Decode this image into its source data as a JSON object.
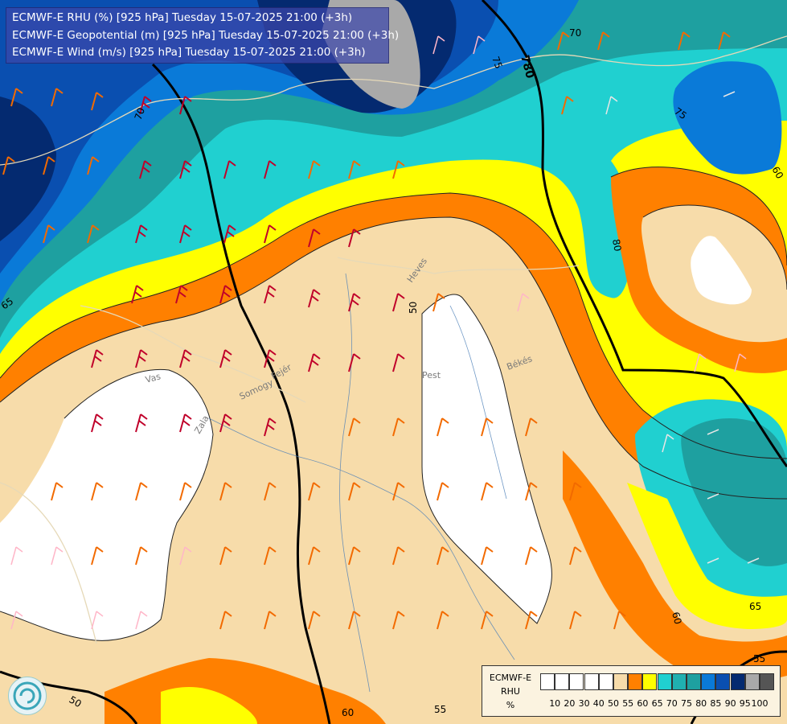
{
  "titles": [
    "ECMWF-E RHU (%) [925 hPa] Tuesday 15-07-2025 21:00 (+3h)",
    "ECMWF-E Geopotential (m) [925 hPa] Tuesday 15-07-2025 21:00 (+3h)",
    "ECMWF-E Wind (m/s) [925 hPa] Tuesday 15-07-2025 21:00 (+3h)"
  ],
  "legend": {
    "model": "ECMWF-E",
    "variable": "RHU",
    "unit": "%",
    "ticks": [
      "10",
      "20",
      "30",
      "40",
      "50",
      "55",
      "60",
      "65",
      "70",
      "75",
      "80",
      "85",
      "90",
      "95",
      "100"
    ],
    "colors": [
      "#ffffff",
      "#ffffff",
      "#ffffff",
      "#ffffff",
      "#ffffff",
      "#f7dcaa",
      "#ff8000",
      "#ffff00",
      "#20d0d0",
      "#20b0b0",
      "#1ea0a0",
      "#0a7ad8",
      "#0a4fb0",
      "#042a70",
      "#a9a9a9",
      "#555555"
    ]
  },
  "contour_labels": {
    "c70_top": "70",
    "c75_top": "75",
    "c780": "780",
    "c70_left": "70",
    "c75_right": "75",
    "c60_right": "60",
    "c80": "80",
    "c65_left": "65",
    "c50_center": "50",
    "c65_right": "65",
    "c55_right": "55",
    "c60_bottom": "60",
    "c60_lower_right": "60",
    "c55_bottom": "55",
    "c50_bottom": "50"
  },
  "place_names": {
    "heves": "Heves",
    "vas": "Vas",
    "zala": "Zala",
    "pest": "Pest",
    "bekes": "Békés",
    "somogy": "Somogy",
    "feher": "Fejér"
  }
}
